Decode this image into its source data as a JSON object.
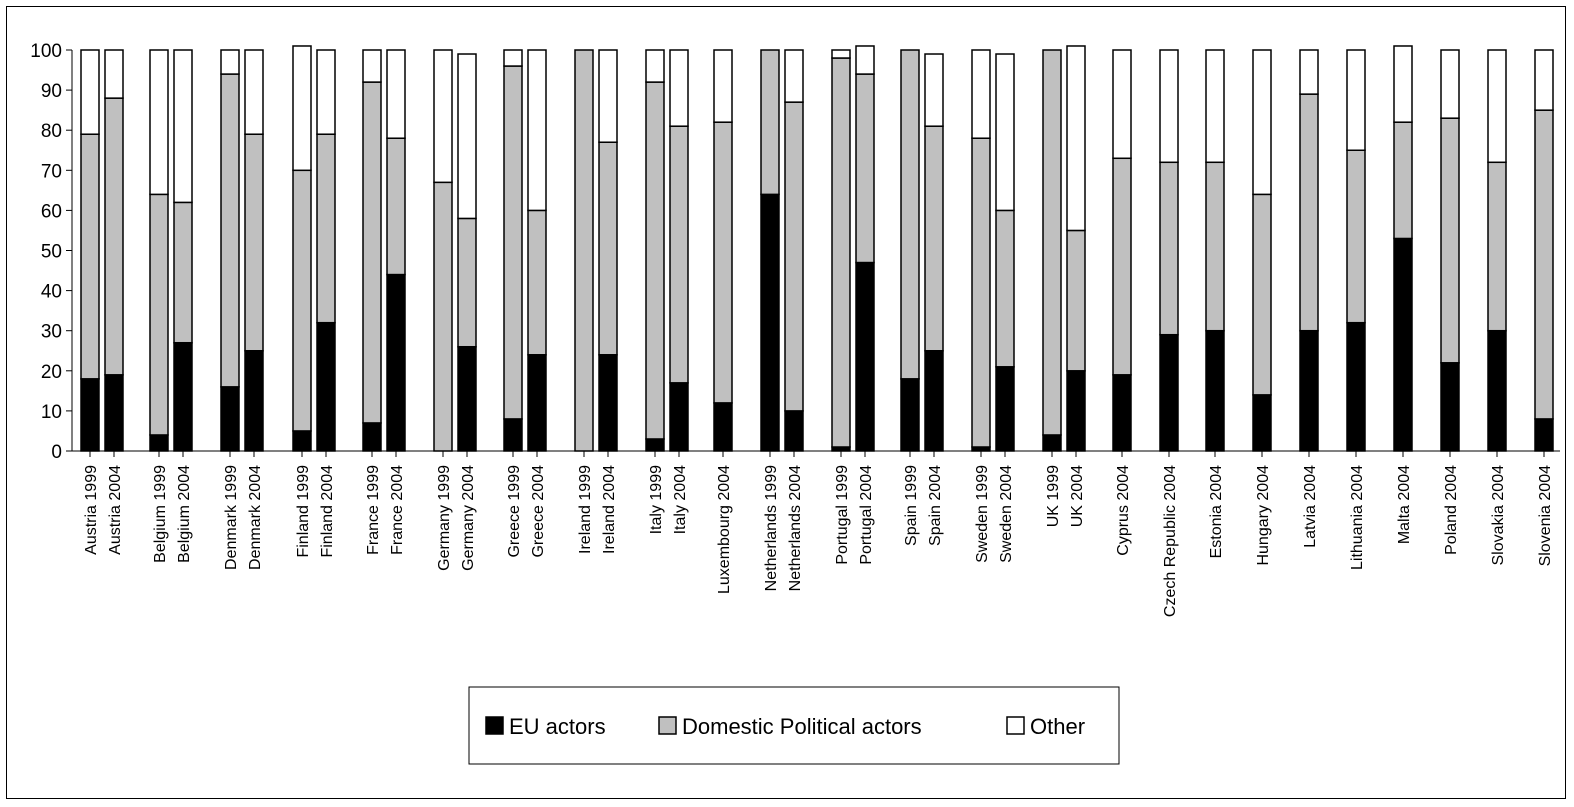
{
  "chart_data": {
    "type": "bar",
    "stacked": true,
    "title": "",
    "xlabel": "",
    "ylabel": "",
    "ylim": [
      0,
      100
    ],
    "yticks": [
      0,
      10,
      20,
      30,
      40,
      50,
      60,
      70,
      80,
      90,
      100
    ],
    "grid": false,
    "legend_position": "bottom",
    "categories": [
      "Austria  1999",
      "Austria  2004",
      "Belgium  1999",
      "Belgium  2004",
      "Denmark 1999",
      "Denmark  2004",
      "Finland 1999",
      "Finland 2004",
      "France 1999",
      "France  2004",
      "Germany 1999",
      "Germany 2004",
      "Greece 1999",
      "Greece 2004",
      "Ireland 1999",
      "Ireland 2004",
      "Italy 1999",
      "Italy 2004",
      "Luxembourg 2004",
      "Netherlands 1999",
      "Netherlands 2004",
      "Portugal 1999",
      "Portugal 2004",
      "Spain 1999",
      "Spain 2004",
      "Sweden 1999",
      "Sweden 2004",
      "UK 1999",
      "UK 2004",
      "Cyprus 2004",
      "Czech Republic 2004",
      "Estonia 2004",
      "Hungary 2004",
      "Latvia 2004",
      "Lithuania 2004",
      "Malta 2004",
      "Poland 2004",
      "Slovakia 2004",
      "Slovenia 2004"
    ],
    "series": [
      {
        "name": "EU actors",
        "color": "#000000",
        "values": [
          18,
          19,
          4,
          27,
          16,
          25,
          5,
          32,
          7,
          44,
          0,
          26,
          8,
          24,
          0,
          24,
          3,
          17,
          12,
          64,
          10,
          1,
          47,
          18,
          25,
          1,
          21,
          4,
          20,
          19,
          29,
          30,
          14,
          30,
          32,
          53,
          22,
          30,
          8
        ]
      },
      {
        "name": "Domestic Political actors",
        "color": "#c0c0c0",
        "values": [
          61,
          69,
          60,
          35,
          78,
          54,
          65,
          47,
          85,
          34,
          67,
          32,
          88,
          36,
          100,
          53,
          89,
          64,
          70,
          36,
          77,
          97,
          47,
          82,
          56,
          77,
          39,
          96,
          35,
          54,
          43,
          42,
          50,
          59,
          43,
          29,
          61,
          42,
          77
        ]
      },
      {
        "name": "Other",
        "color": "#ffffff",
        "values": [
          21,
          12,
          36,
          38,
          6,
          21,
          31,
          21,
          8,
          22,
          33,
          41,
          4,
          40,
          0,
          23,
          8,
          19,
          18,
          0,
          13,
          2,
          7,
          0,
          18,
          22,
          39,
          0,
          46,
          27,
          28,
          28,
          36,
          11,
          25,
          19,
          17,
          28,
          15
        ]
      }
    ]
  }
}
